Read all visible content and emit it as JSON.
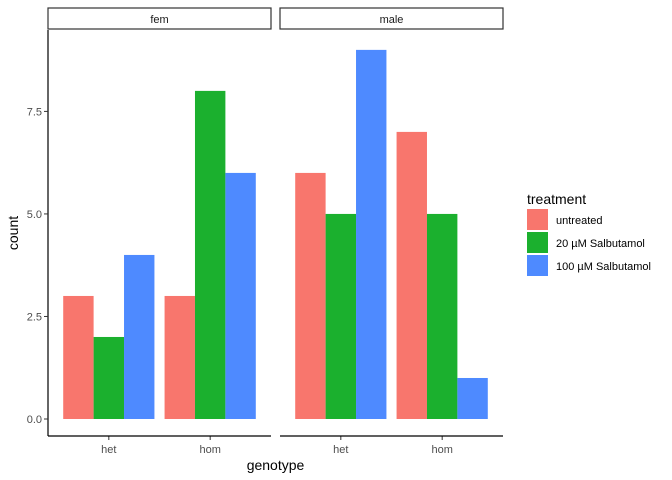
{
  "chart_data": {
    "type": "bar",
    "facets": [
      "fem",
      "male"
    ],
    "categories": [
      "het",
      "hom"
    ],
    "xlabel": "genotype",
    "ylabel": "count",
    "ylim": [
      0,
      9.45
    ],
    "yticks": [
      0.0,
      2.5,
      5.0,
      7.5
    ],
    "ytick_labels": [
      "0.0",
      "2.5",
      "5.0",
      "7.5"
    ],
    "legend_title": "treatment",
    "legend_position": "right",
    "grid": false,
    "series": [
      {
        "name": "untreated",
        "color": "#F8766D",
        "values": {
          "fem": [
            3,
            3
          ],
          "male": [
            6,
            7
          ]
        }
      },
      {
        "name": "20 µM Salbutamol",
        "color": "#1BB02E",
        "values": {
          "fem": [
            2,
            8
          ],
          "male": [
            5,
            5
          ]
        }
      },
      {
        "name": "100 µM Salbutamol",
        "color": "#4E8AFF",
        "values": {
          "fem": [
            4,
            6
          ],
          "male": [
            9,
            1
          ]
        }
      }
    ]
  }
}
